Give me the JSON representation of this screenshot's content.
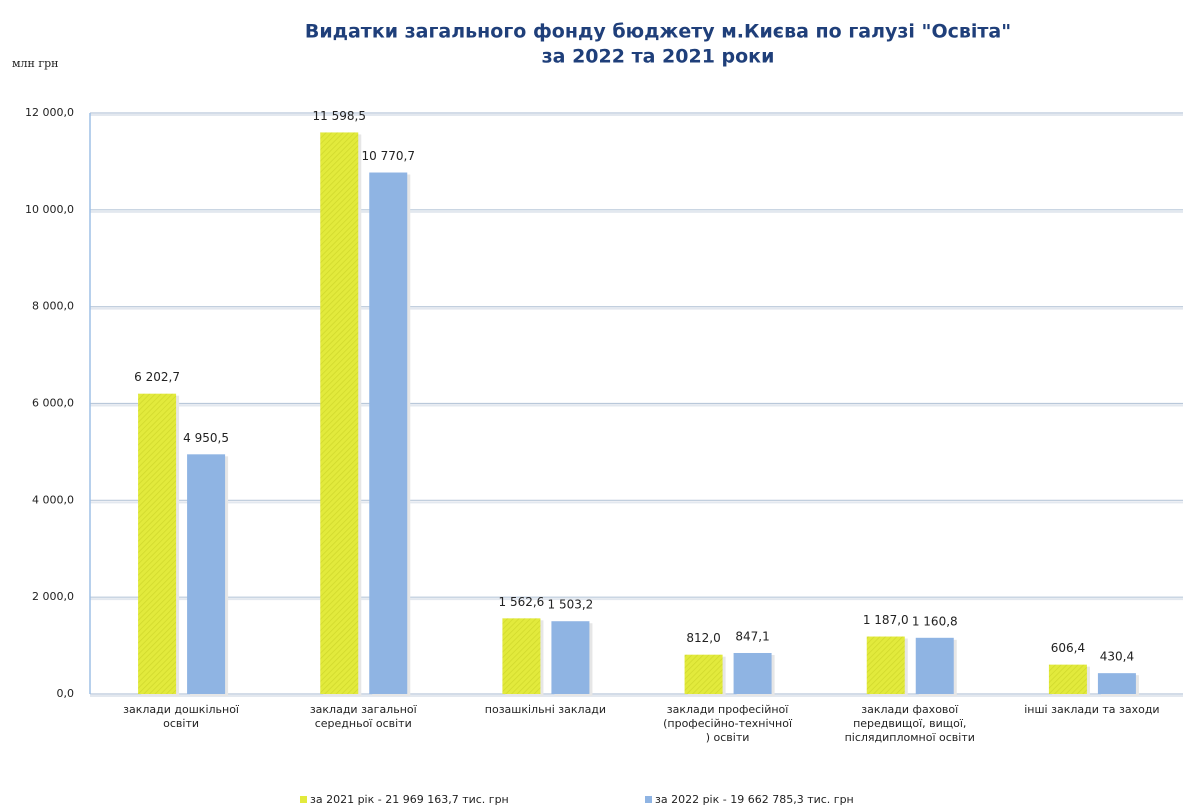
{
  "chart_data": {
    "type": "bar",
    "title": "Видатки загального фонду бюджету м.Києва по галузі \"Освіта\"",
    "subtitle": "за 2022 та 2021 роки",
    "y_label": "млн грн",
    "categories": [
      [
        "заклади дошкільної",
        "освіти"
      ],
      [
        "заклади загальної",
        "середньої освіти"
      ],
      [
        "позашкільні заклади"
      ],
      [
        "заклади професійної",
        "(професійно-технічної",
        ") освіти"
      ],
      [
        "заклади фахової",
        "передвищої, вищої,",
        "післядипломної освіти"
      ],
      [
        "інші заклади та заходи"
      ]
    ],
    "series": [
      {
        "name": "за 2021 рік - 21 969 163,7 тис. грн",
        "color": "#e2ea3c",
        "values": [
          6202.7,
          11598.5,
          1562.6,
          812.0,
          1187.0,
          606.4
        ],
        "value_labels": [
          "6 202,7",
          "11 598,5",
          "1 562,6",
          "812,0",
          "1 187,0",
          "606,4"
        ]
      },
      {
        "name": "за  2022 рік - 19 662 785,3 тис. грн",
        "color": "#8fb4e3",
        "values": [
          4950.5,
          10770.7,
          1503.2,
          847.1,
          1160.8,
          430.4
        ],
        "value_labels": [
          "4 950,5",
          "10 770,7",
          "1 503,2",
          "847,1",
          "1 160,8",
          "430,4"
        ]
      }
    ],
    "ylim": [
      0,
      12000
    ],
    "yticks": [
      {
        "value": 0,
        "label": "0,0"
      },
      {
        "value": 2000,
        "label": "2 000,0"
      },
      {
        "value": 4000,
        "label": "4 000,0"
      },
      {
        "value": 6000,
        "label": "6 000,0"
      },
      {
        "value": 8000,
        "label": "8 000,0"
      },
      {
        "value": 10000,
        "label": "10 000,0"
      },
      {
        "value": 12000,
        "label": "12 000,0"
      }
    ],
    "grid": true
  }
}
